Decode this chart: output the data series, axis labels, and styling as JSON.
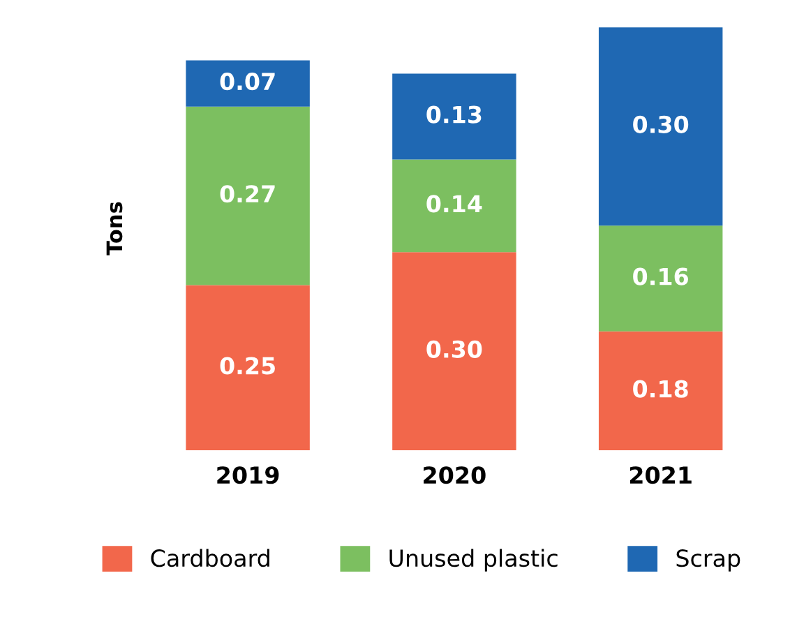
{
  "chart_data": {
    "type": "bar",
    "stacked": true,
    "ylabel": "Tons",
    "categories": [
      "2019",
      "2020",
      "2021"
    ],
    "series": [
      {
        "name": "Cardboard",
        "color": "#f2674b",
        "values": [
          0.25,
          0.3,
          0.18
        ],
        "value_labels": [
          "0.25",
          "0.30",
          "0.18"
        ]
      },
      {
        "name": "Unused plastic",
        "color": "#7cbf60",
        "values": [
          0.27,
          0.14,
          0.16
        ],
        "value_labels": [
          "0.27",
          "0.14",
          "0.16"
        ]
      },
      {
        "name": "Scrap",
        "color": "#1f68b3",
        "values": [
          0.07,
          0.13,
          0.3
        ],
        "value_labels": [
          "0.07",
          "0.13",
          "0.30"
        ]
      }
    ],
    "legend": "bottom",
    "grid": false,
    "tick_labels": "x"
  }
}
